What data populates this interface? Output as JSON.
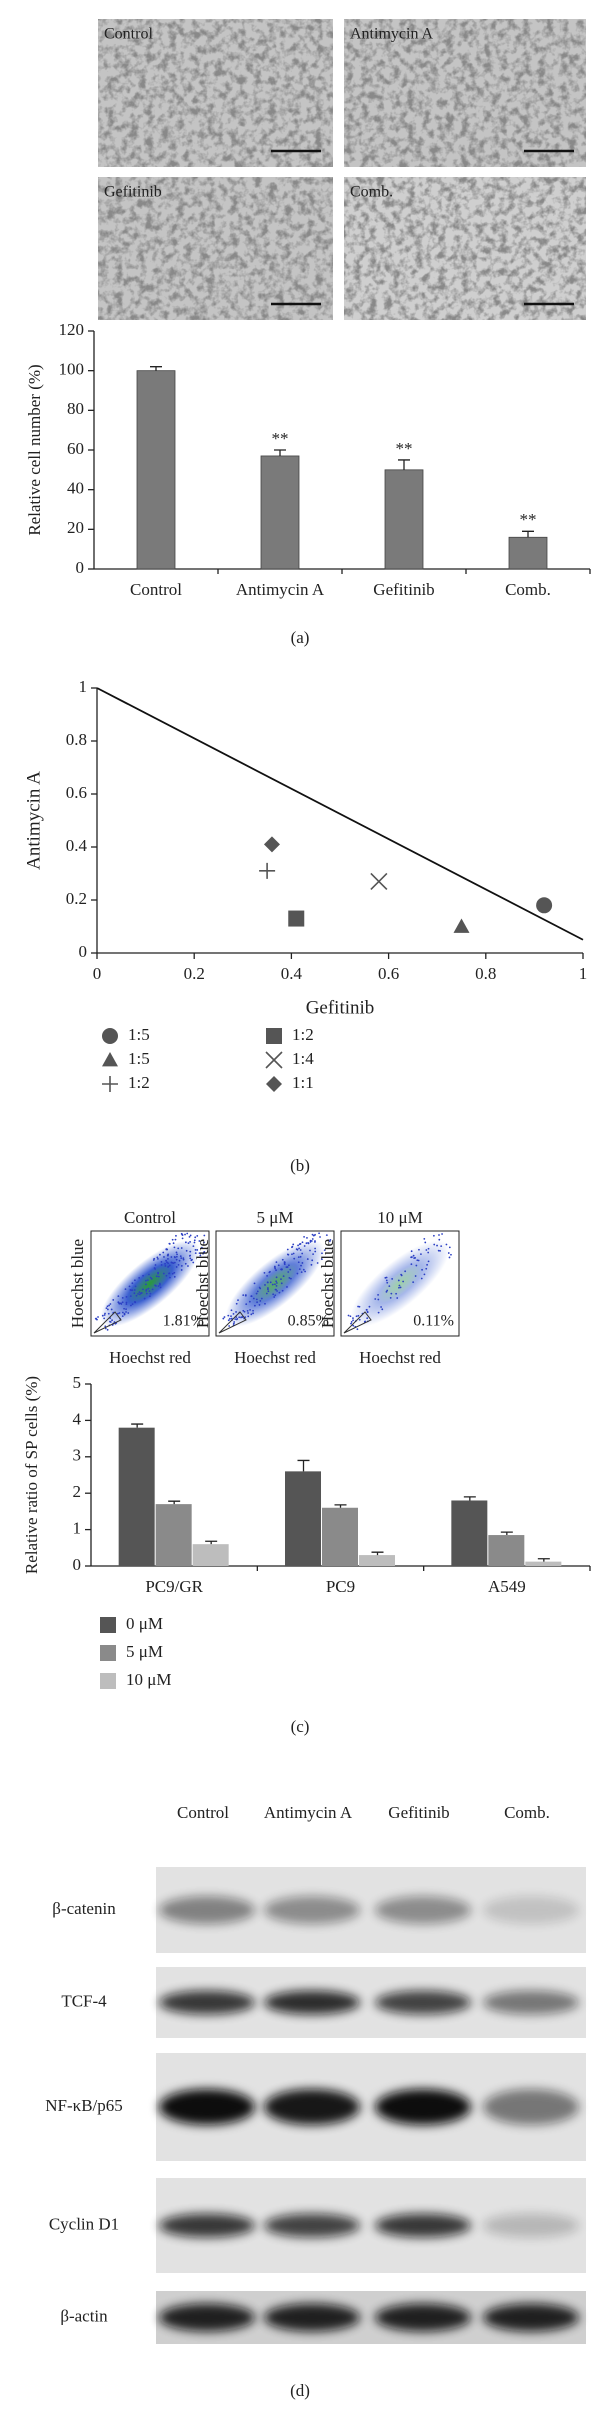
{
  "panel_labels": [
    "(a)",
    "(b)",
    "(c)",
    "(d)"
  ],
  "micrographs": [
    "Control",
    "Antimycin A",
    "Gefitinib",
    "Comb."
  ],
  "flow": {
    "titles": [
      "Control",
      "5 μM",
      "10 μM"
    ],
    "ylabel": "Hoechst blue",
    "xlabel": "Hoechst red",
    "percentages": [
      "1.81%",
      "0.85%",
      "0.11%"
    ]
  },
  "blot": {
    "lanes": [
      "Control",
      "Antimycin A",
      "Gefitinib",
      "Comb."
    ],
    "rows": [
      "β-catenin",
      "TCF-4",
      "NF-κB/p65",
      "Cyclin D1",
      "β-actin"
    ]
  },
  "chart_data": [
    {
      "type": "bar",
      "ylabel": "Relative cell number (%)",
      "categories": [
        "Control",
        "Antimycin A",
        "Gefitinib",
        "Comb."
      ],
      "values": [
        100,
        57,
        50,
        16
      ],
      "errors": [
        2,
        3,
        5,
        3
      ],
      "annotations": [
        null,
        "**",
        "**",
        "**"
      ],
      "color": "#7a7a7a",
      "ylim": [
        0,
        120
      ],
      "yticks": [
        0,
        20,
        40,
        60,
        80,
        100,
        120
      ]
    },
    {
      "type": "scatter",
      "xlabel": "Gefitinib",
      "ylabel": "Antimycin A",
      "line": {
        "x": [
          0,
          1
        ],
        "y": [
          1,
          0.05
        ]
      },
      "series": [
        {
          "name": "1:5",
          "marker": "circle",
          "color": "#555555",
          "x": [
            0.92
          ],
          "y": [
            0.18
          ]
        },
        {
          "name": "1:5",
          "marker": "triangle",
          "color": "#555555",
          "x": [
            0.75
          ],
          "y": [
            0.1
          ]
        },
        {
          "name": "1:2",
          "marker": "plus",
          "color": "#555555",
          "x": [
            0.35
          ],
          "y": [
            0.31
          ]
        },
        {
          "name": "1:2",
          "marker": "square",
          "color": "#555555",
          "x": [
            0.41
          ],
          "y": [
            0.13
          ]
        },
        {
          "name": "1:4",
          "marker": "cross",
          "color": "#555555",
          "x": [
            0.58
          ],
          "y": [
            0.27
          ]
        },
        {
          "name": "1:1",
          "marker": "diamond",
          "color": "#555555",
          "x": [
            0.36
          ],
          "y": [
            0.41
          ]
        }
      ],
      "xlim": [
        0,
        1
      ],
      "ylim": [
        0,
        1
      ],
      "xticks": [
        0,
        0.2,
        0.4,
        0.6,
        0.8,
        1
      ],
      "yticks": [
        0,
        0.2,
        0.4,
        0.6,
        0.8,
        1
      ]
    },
    {
      "type": "grouped_bar",
      "ylabel": "Relative ratio of SP cells (%)",
      "categories": [
        "PC9/GR",
        "PC9",
        "A549"
      ],
      "series": [
        {
          "name": "0 μM",
          "color": "#555555",
          "values": [
            3.8,
            2.6,
            1.8
          ],
          "errors": [
            0.1,
            0.3,
            0.1
          ]
        },
        {
          "name": "5 μM",
          "color": "#8a8a8a",
          "values": [
            1.7,
            1.6,
            0.85
          ],
          "errors": [
            0.08,
            0.08,
            0.08
          ]
        },
        {
          "name": "10 μM",
          "color": "#bdbdbd",
          "values": [
            0.6,
            0.3,
            0.12
          ],
          "errors": [
            0.08,
            0.08,
            0.08
          ]
        }
      ],
      "ylim": [
        0,
        5
      ],
      "yticks": [
        0,
        1,
        2,
        3,
        4,
        5
      ]
    }
  ]
}
